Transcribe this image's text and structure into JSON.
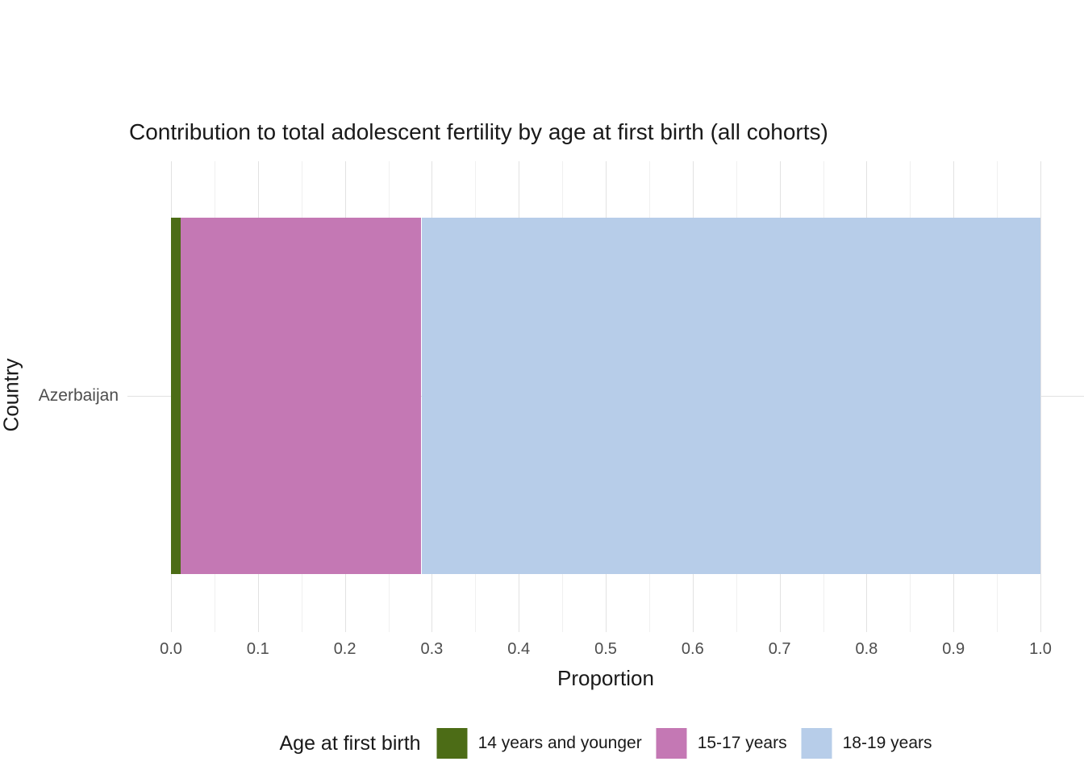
{
  "chart_data": {
    "type": "bar",
    "orientation": "horizontal",
    "stacked": true,
    "title": "Contribution to total adolescent fertility by age at first birth (all cohorts)",
    "xlabel": "Proportion",
    "ylabel": "Country",
    "categories": [
      "Azerbaijan"
    ],
    "series": [
      {
        "name": "14 years and younger",
        "color": "#4c6c16",
        "values": [
          0.011
        ]
      },
      {
        "name": "15-17 years",
        "color": "#c478b4",
        "values": [
          0.277
        ]
      },
      {
        "name": "18-19 years",
        "color": "#b7cde9",
        "values": [
          0.712
        ]
      }
    ],
    "xlim": [
      0,
      1
    ],
    "x_ticks": [
      "0.0",
      "0.1",
      "0.2",
      "0.3",
      "0.4",
      "0.5",
      "0.6",
      "0.7",
      "0.8",
      "0.9",
      "1.0"
    ],
    "grid": "vertical major and minor gridlines, light gray, white background",
    "legend": {
      "title": "Age at first birth",
      "position": "bottom"
    }
  }
}
